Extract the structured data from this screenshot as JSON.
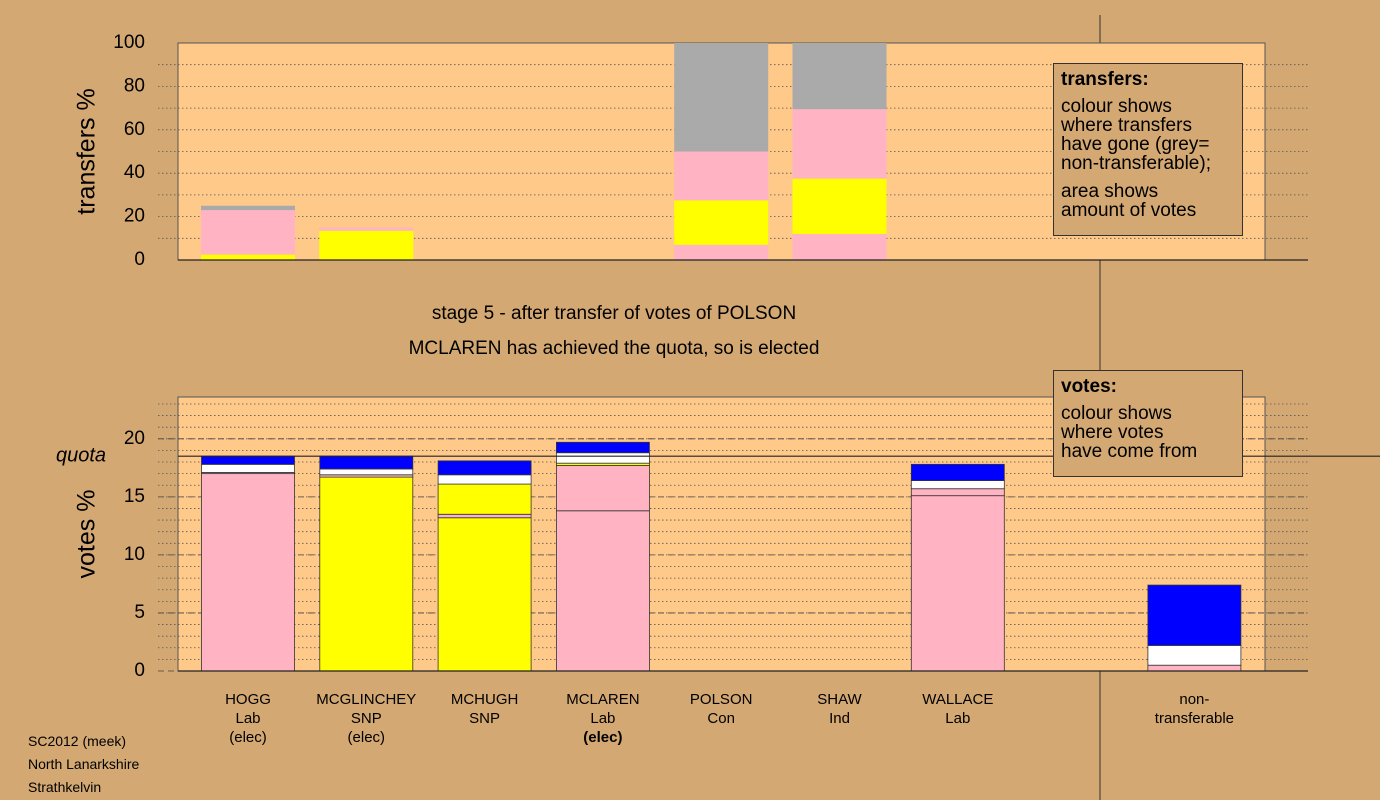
{
  "chart_data": [
    {
      "type": "bar",
      "stacked": true,
      "ylabel": "transfers %",
      "ylim": [
        0,
        100
      ],
      "yticks": [
        0,
        20,
        40,
        60,
        80,
        100
      ],
      "minor_step": 10,
      "grid": true,
      "series": [
        {
          "color": "#ffb3c3",
          "values": [
            0,
            0,
            0,
            0,
            7,
            12,
            0,
            0
          ]
        },
        {
          "color": "#ffff00",
          "values": [
            2.5,
            13.5,
            0,
            0,
            20.5,
            25.5,
            0,
            0
          ]
        },
        {
          "color": "#ffb3c3",
          "values": [
            20.5,
            1.5,
            0,
            0,
            22.5,
            32,
            0,
            0
          ]
        },
        {
          "color": "#aaaaaa",
          "values": [
            2,
            0,
            0,
            0,
            50,
            30.5,
            0,
            0
          ]
        }
      ],
      "legend": {
        "title": "transfers:",
        "note": [
          [
            "colour shows",
            "where transfers",
            "have gone (grey=",
            "non-transferable);"
          ],
          [
            "area shows",
            "amount of votes"
          ]
        ]
      }
    },
    {
      "type": "bar",
      "stacked": true,
      "title": "stage 5 - after transfer of votes of POLSON",
      "subtitle": "MCLAREN has achieved the quota, so is elected",
      "ylabel": "votes %",
      "ylim": [
        0,
        23.6
      ],
      "yticks": [
        0,
        5,
        10,
        15,
        20
      ],
      "minor_step": 1,
      "grid": true,
      "quota": {
        "value": 18.5,
        "label": "quota"
      },
      "categories": [
        "HOGG",
        "MCGLINCHEY",
        "MCHUGH",
        "MCLAREN",
        "POLSON",
        "SHAW",
        "WALLACE",
        "non-transferable"
      ],
      "parties": [
        "Lab",
        "SNP",
        "SNP",
        "Lab",
        "Con",
        "Ind",
        "Lab",
        null
      ],
      "status": [
        "(elec)",
        "(elec)",
        null,
        "(elec)",
        null,
        null,
        null,
        null
      ],
      "series": [
        {
          "color": "#ffb3c3",
          "values": [
            17,
            0,
            0,
            13.8,
            0,
            0,
            15.1,
            0
          ]
        },
        {
          "color": "#ffff00",
          "values": [
            0,
            16.7,
            13.2,
            0,
            0,
            0,
            0,
            0
          ]
        },
        {
          "color": "#ffb3c3",
          "values": [
            0.1,
            0.2,
            0.3,
            3.9,
            0,
            0,
            0.6,
            0.5
          ]
        },
        {
          "color": "#ffff00",
          "values": [
            0,
            0,
            2.6,
            0.2,
            0,
            0,
            0,
            0
          ]
        },
        {
          "color": "#ffffff",
          "values": [
            0.7,
            0.5,
            0.8,
            0.9,
            0,
            0,
            0.7,
            1.7
          ]
        },
        {
          "color": "#0000ff",
          "values": [
            0.7,
            1.1,
            1.2,
            0.9,
            0,
            0,
            1.4,
            5.2
          ]
        }
      ],
      "legend": {
        "title": "votes:",
        "note": [
          [
            "colour shows",
            "where votes",
            "have come from"
          ]
        ]
      }
    }
  ],
  "footer": [
    "SC2012 (meek)",
    "North Lanarkshire",
    "Strathkelvin"
  ]
}
